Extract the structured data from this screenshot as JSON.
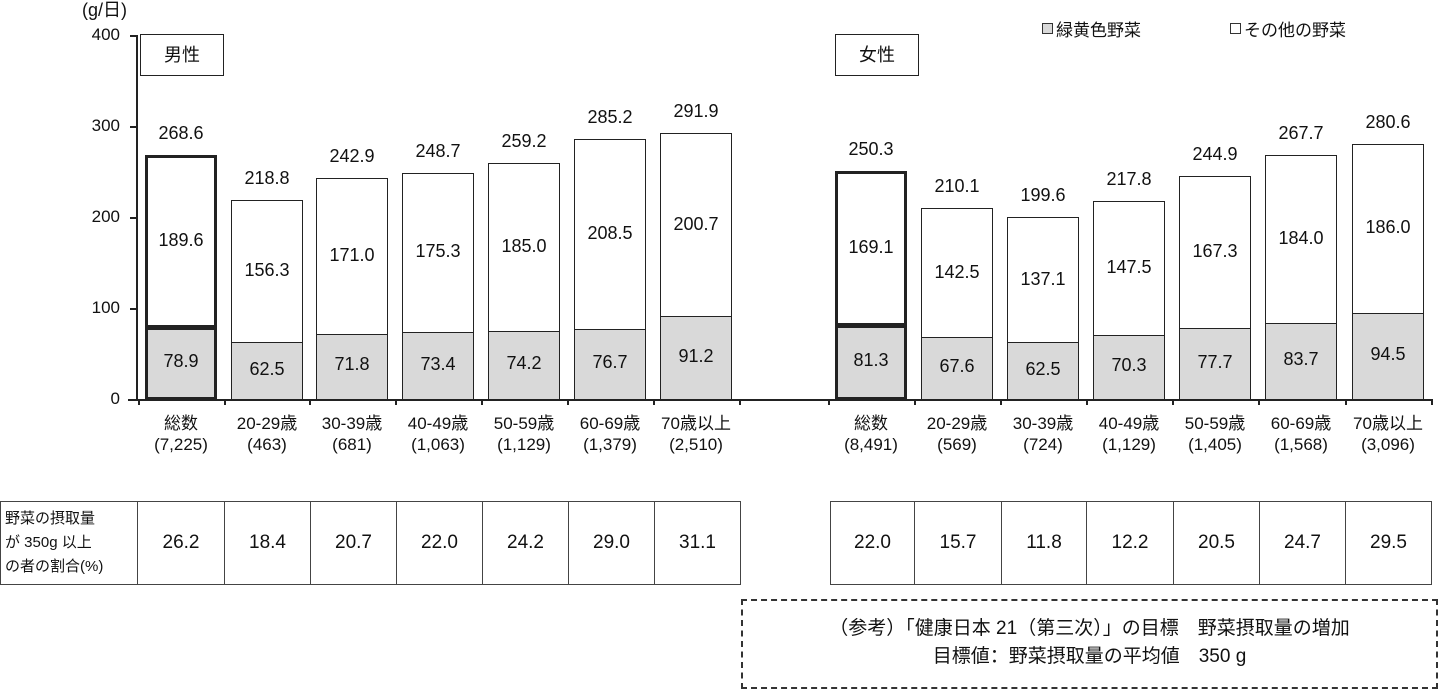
{
  "chart_data": {
    "type": "bar",
    "stacked": true,
    "title": "",
    "ylabel": "(g/日)",
    "ylim": [
      0,
      400
    ],
    "yticks": [
      0,
      100,
      200,
      300,
      400
    ],
    "legend": [
      "緑黄色野菜",
      "その他の野菜"
    ],
    "legend_position": "top-right",
    "groups": [
      {
        "name": "男性",
        "categories": [
          "総数",
          "20-29歳",
          "30-39歳",
          "40-49歳",
          "50-59歳",
          "60-69歳",
          "70歳以上"
        ],
        "n": [
          "(7,225)",
          "(463)",
          "(681)",
          "(1,063)",
          "(1,129)",
          "(1,379)",
          "(2,510)"
        ],
        "series": [
          {
            "name": "緑黄色野菜",
            "values": [
              78.9,
              62.5,
              71.8,
              73.4,
              74.2,
              76.7,
              91.2
            ]
          },
          {
            "name": "その他の野菜",
            "values": [
              189.6,
              156.3,
              171.0,
              175.3,
              185.0,
              208.5,
              200.7
            ]
          }
        ],
        "totals": [
          268.6,
          218.8,
          242.9,
          248.7,
          259.2,
          285.2,
          291.9
        ],
        "pct_350g_or_more": [
          26.2,
          18.4,
          20.7,
          22.0,
          24.2,
          29.0,
          31.1
        ]
      },
      {
        "name": "女性",
        "categories": [
          "総数",
          "20-29歳",
          "30-39歳",
          "40-49歳",
          "50-59歳",
          "60-69歳",
          "70歳以上"
        ],
        "n": [
          "(8,491)",
          "(569)",
          "(724)",
          "(1,129)",
          "(1,405)",
          "(1,568)",
          "(3,096)"
        ],
        "series": [
          {
            "name": "緑黄色野菜",
            "values": [
              81.3,
              67.6,
              62.5,
              70.3,
              77.7,
              83.7,
              94.5
            ]
          },
          {
            "name": "その他の野菜",
            "values": [
              169.1,
              142.5,
              137.1,
              147.5,
              167.3,
              184.0,
              186.0
            ]
          }
        ],
        "totals": [
          250.3,
          210.1,
          199.6,
          217.8,
          244.9,
          267.7,
          280.6
        ],
        "pct_350g_or_more": [
          22.0,
          15.7,
          11.8,
          12.2,
          20.5,
          24.7,
          29.5
        ]
      }
    ],
    "colors": {
      "緑黄色野菜": "#d9d9d9",
      "その他の野菜": "#ffffff",
      "outline": "#222222"
    }
  },
  "unit_label": "(g/日)",
  "yticks": [
    "400",
    "300",
    "200",
    "100",
    "0"
  ],
  "legend": {
    "green_yellow": "緑黄色野菜",
    "other": "その他の野菜"
  },
  "male": {
    "title": "男性",
    "bars": [
      {
        "cat": "総数",
        "n": "(7,225)",
        "green": "78.9",
        "other": "189.6",
        "total": "268.6"
      },
      {
        "cat": "20-29歳",
        "n": "(463)",
        "green": "62.5",
        "other": "156.3",
        "total": "218.8"
      },
      {
        "cat": "30-39歳",
        "n": "(681)",
        "green": "71.8",
        "other": "171.0",
        "total": "242.9"
      },
      {
        "cat": "40-49歳",
        "n": "(1,063)",
        "green": "73.4",
        "other": "175.3",
        "total": "248.7"
      },
      {
        "cat": "50-59歳",
        "n": "(1,129)",
        "green": "74.2",
        "other": "185.0",
        "total": "259.2"
      },
      {
        "cat": "60-69歳",
        "n": "(1,379)",
        "green": "76.7",
        "other": "208.5",
        "total": "285.2"
      },
      {
        "cat": "70歳以上",
        "n": "(2,510)",
        "green": "91.2",
        "other": "200.7",
        "total": "291.9"
      }
    ],
    "pct": [
      "26.2",
      "18.4",
      "20.7",
      "22.0",
      "24.2",
      "29.0",
      "31.1"
    ]
  },
  "female": {
    "title": "女性",
    "bars": [
      {
        "cat": "総数",
        "n": "(8,491)",
        "green": "81.3",
        "other": "169.1",
        "total": "250.3"
      },
      {
        "cat": "20-29歳",
        "n": "(569)",
        "green": "67.6",
        "other": "142.5",
        "total": "210.1"
      },
      {
        "cat": "30-39歳",
        "n": "(724)",
        "green": "62.5",
        "other": "137.1",
        "total": "199.6"
      },
      {
        "cat": "40-49歳",
        "n": "(1,129)",
        "green": "70.3",
        "other": "147.5",
        "total": "217.8"
      },
      {
        "cat": "50-59歳",
        "n": "(1,405)",
        "green": "77.7",
        "other": "167.3",
        "total": "244.9"
      },
      {
        "cat": "60-69歳",
        "n": "(1,568)",
        "green": "83.7",
        "other": "184.0",
        "total": "267.7"
      },
      {
        "cat": "70歳以上",
        "n": "(3,096)",
        "green": "94.5",
        "other": "186.0",
        "total": "280.6"
      }
    ],
    "pct": [
      "22.0",
      "15.7",
      "11.8",
      "12.2",
      "20.5",
      "24.7",
      "29.5"
    ]
  },
  "table": {
    "row_header_lines": [
      "野菜の摂取量",
      "が 350g 以上",
      "の者の割合(%)"
    ]
  },
  "note": {
    "line1": "（参考）「健康日本 21（第三次）」の目標　野菜摂取量の増加",
    "line2": "目標値：野菜摂取量の平均値　350 g"
  }
}
